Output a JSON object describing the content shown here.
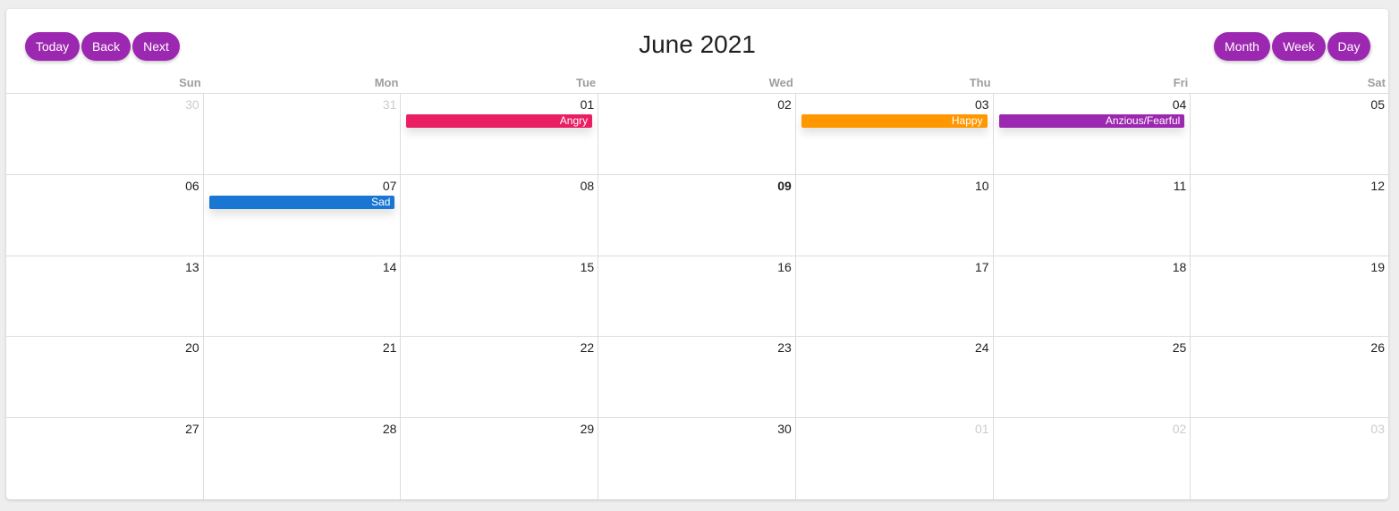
{
  "toolbar": {
    "today": "Today",
    "back": "Back",
    "next": "Next",
    "title": "June 2021",
    "views": [
      "Month",
      "Week",
      "Day"
    ]
  },
  "weekdays": [
    "Sun",
    "Mon",
    "Tue",
    "Wed",
    "Thu",
    "Fri",
    "Sat"
  ],
  "days": [
    {
      "label": "30",
      "off": true
    },
    {
      "label": "31",
      "off": true
    },
    {
      "label": "01",
      "event": {
        "title": "Angry",
        "color": "#e91e63"
      }
    },
    {
      "label": "02"
    },
    {
      "label": "03",
      "event": {
        "title": "Happy",
        "color": "#ff9800"
      }
    },
    {
      "label": "04",
      "event": {
        "title": "Anzious/Fearful",
        "color": "#9c27b0"
      }
    },
    {
      "label": "05"
    },
    {
      "label": "06"
    },
    {
      "label": "07",
      "event": {
        "title": "Sad",
        "color": "#1976d2"
      }
    },
    {
      "label": "08"
    },
    {
      "label": "09",
      "today": true
    },
    {
      "label": "10"
    },
    {
      "label": "11"
    },
    {
      "label": "12"
    },
    {
      "label": "13"
    },
    {
      "label": "14"
    },
    {
      "label": "15"
    },
    {
      "label": "16"
    },
    {
      "label": "17"
    },
    {
      "label": "18"
    },
    {
      "label": "19"
    },
    {
      "label": "20"
    },
    {
      "label": "21"
    },
    {
      "label": "22"
    },
    {
      "label": "23"
    },
    {
      "label": "24"
    },
    {
      "label": "25"
    },
    {
      "label": "26"
    },
    {
      "label": "27"
    },
    {
      "label": "28"
    },
    {
      "label": "29"
    },
    {
      "label": "30"
    },
    {
      "label": "01",
      "off": true
    },
    {
      "label": "02",
      "off": true
    },
    {
      "label": "03",
      "off": true
    }
  ],
  "colors": {
    "accent": "#9c27b0",
    "angry": "#e91e63",
    "happy": "#ff9800",
    "anxious": "#9c27b0",
    "sad": "#1976d2"
  }
}
